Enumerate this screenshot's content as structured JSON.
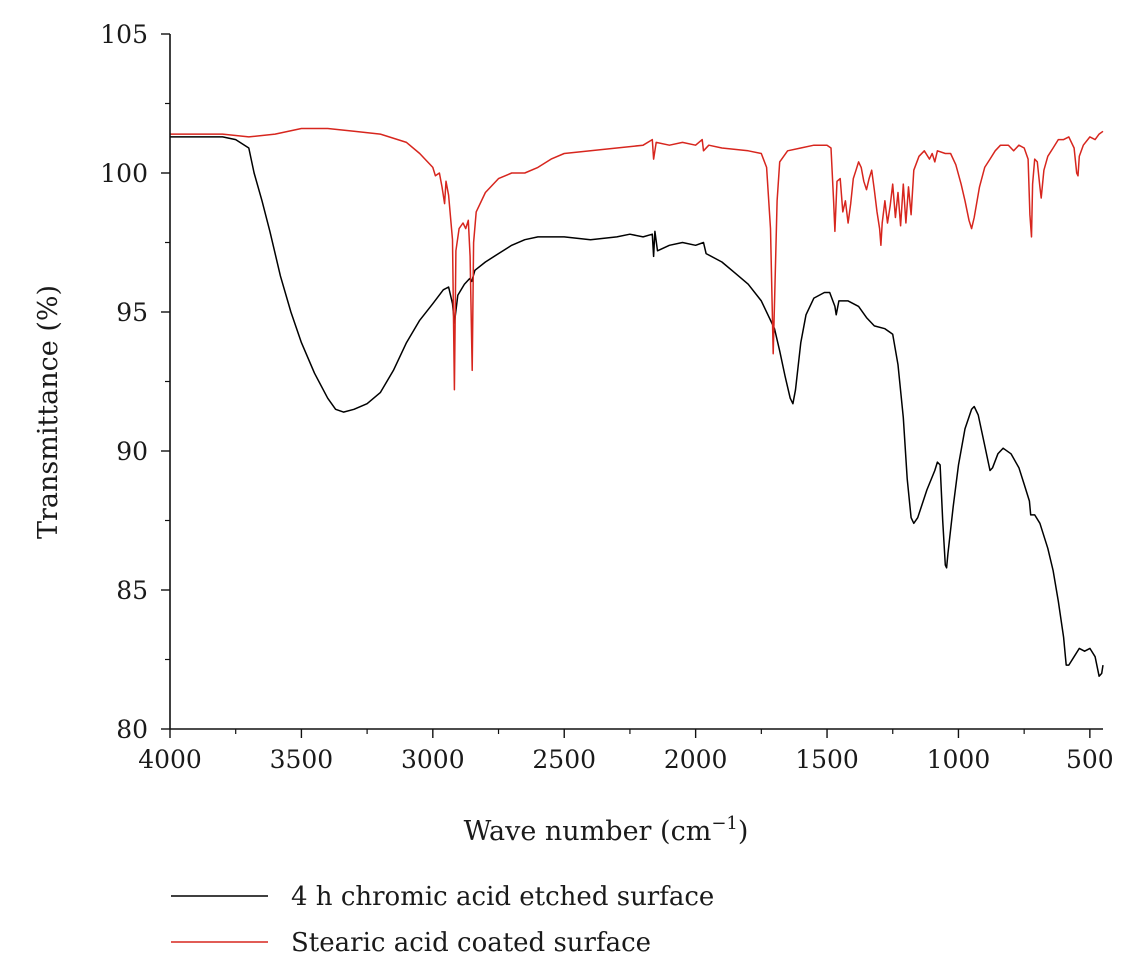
{
  "chart_data": {
    "type": "line",
    "xlabel": "Wave number (cm",
    "xlabel_sup": "−1",
    "xlabel_close": ")",
    "ylabel": "Transmittance (%)",
    "xlim": [
      4000,
      450
    ],
    "x_reversed": true,
    "ylim": [
      80,
      105
    ],
    "x_ticks": [
      4000,
      3500,
      3000,
      2500,
      2000,
      1500,
      1000,
      500
    ],
    "y_ticks": [
      80,
      85,
      90,
      95,
      100,
      105
    ],
    "legend_position": "bottom-left",
    "series": [
      {
        "name": "4 h chromic acid etched surface",
        "color": "#000000",
        "points": [
          [
            4000,
            101.3
          ],
          [
            3900,
            101.3
          ],
          [
            3800,
            101.3
          ],
          [
            3750,
            101.2
          ],
          [
            3700,
            100.9
          ],
          [
            3680,
            100.0
          ],
          [
            3650,
            99.0
          ],
          [
            3620,
            97.9
          ],
          [
            3580,
            96.3
          ],
          [
            3540,
            95.0
          ],
          [
            3500,
            93.9
          ],
          [
            3450,
            92.8
          ],
          [
            3400,
            91.9
          ],
          [
            3370,
            91.5
          ],
          [
            3340,
            91.4
          ],
          [
            3300,
            91.5
          ],
          [
            3250,
            91.7
          ],
          [
            3200,
            92.1
          ],
          [
            3150,
            92.9
          ],
          [
            3100,
            93.9
          ],
          [
            3050,
            94.7
          ],
          [
            3000,
            95.3
          ],
          [
            2960,
            95.8
          ],
          [
            2940,
            95.9
          ],
          [
            2925,
            95.3
          ],
          [
            2918,
            94.6
          ],
          [
            2905,
            95.6
          ],
          [
            2880,
            96.0
          ],
          [
            2860,
            96.2
          ],
          [
            2852,
            96.1
          ],
          [
            2840,
            96.5
          ],
          [
            2800,
            96.8
          ],
          [
            2750,
            97.1
          ],
          [
            2700,
            97.4
          ],
          [
            2650,
            97.6
          ],
          [
            2600,
            97.7
          ],
          [
            2500,
            97.7
          ],
          [
            2400,
            97.6
          ],
          [
            2300,
            97.7
          ],
          [
            2250,
            97.8
          ],
          [
            2200,
            97.7
          ],
          [
            2165,
            97.8
          ],
          [
            2160,
            97.0
          ],
          [
            2155,
            97.9
          ],
          [
            2145,
            97.2
          ],
          [
            2100,
            97.4
          ],
          [
            2050,
            97.5
          ],
          [
            2000,
            97.4
          ],
          [
            1970,
            97.5
          ],
          [
            1960,
            97.1
          ],
          [
            1900,
            96.8
          ],
          [
            1850,
            96.4
          ],
          [
            1800,
            96.0
          ],
          [
            1750,
            95.4
          ],
          [
            1700,
            94.4
          ],
          [
            1680,
            93.6
          ],
          [
            1660,
            92.7
          ],
          [
            1640,
            91.9
          ],
          [
            1630,
            91.7
          ],
          [
            1620,
            92.2
          ],
          [
            1600,
            93.9
          ],
          [
            1580,
            94.9
          ],
          [
            1550,
            95.5
          ],
          [
            1510,
            95.7
          ],
          [
            1490,
            95.7
          ],
          [
            1470,
            95.2
          ],
          [
            1465,
            94.9
          ],
          [
            1455,
            95.4
          ],
          [
            1420,
            95.4
          ],
          [
            1380,
            95.2
          ],
          [
            1350,
            94.8
          ],
          [
            1320,
            94.5
          ],
          [
            1280,
            94.4
          ],
          [
            1250,
            94.2
          ],
          [
            1230,
            93.1
          ],
          [
            1210,
            91.2
          ],
          [
            1195,
            89.0
          ],
          [
            1180,
            87.6
          ],
          [
            1170,
            87.4
          ],
          [
            1155,
            87.6
          ],
          [
            1120,
            88.6
          ],
          [
            1090,
            89.3
          ],
          [
            1080,
            89.6
          ],
          [
            1070,
            89.5
          ],
          [
            1060,
            87.5
          ],
          [
            1050,
            85.9
          ],
          [
            1045,
            85.8
          ],
          [
            1040,
            86.3
          ],
          [
            1020,
            88.0
          ],
          [
            1000,
            89.5
          ],
          [
            975,
            90.8
          ],
          [
            950,
            91.5
          ],
          [
            940,
            91.6
          ],
          [
            925,
            91.3
          ],
          [
            900,
            90.2
          ],
          [
            880,
            89.3
          ],
          [
            870,
            89.4
          ],
          [
            850,
            89.9
          ],
          [
            830,
            90.1
          ],
          [
            800,
            89.9
          ],
          [
            770,
            89.4
          ],
          [
            750,
            88.8
          ],
          [
            730,
            88.2
          ],
          [
            725,
            87.7
          ],
          [
            710,
            87.7
          ],
          [
            690,
            87.4
          ],
          [
            660,
            86.5
          ],
          [
            640,
            85.7
          ],
          [
            620,
            84.6
          ],
          [
            600,
            83.3
          ],
          [
            590,
            82.3
          ],
          [
            580,
            82.3
          ],
          [
            560,
            82.6
          ],
          [
            540,
            82.9
          ],
          [
            520,
            82.8
          ],
          [
            500,
            82.9
          ],
          [
            480,
            82.6
          ],
          [
            465,
            81.9
          ],
          [
            455,
            82.0
          ],
          [
            450,
            82.3
          ]
        ]
      },
      {
        "name": "Stearic acid coated surface",
        "color": "#d7261e",
        "points": [
          [
            4000,
            101.4
          ],
          [
            3900,
            101.4
          ],
          [
            3800,
            101.4
          ],
          [
            3700,
            101.3
          ],
          [
            3600,
            101.4
          ],
          [
            3500,
            101.6
          ],
          [
            3400,
            101.6
          ],
          [
            3300,
            101.5
          ],
          [
            3200,
            101.4
          ],
          [
            3100,
            101.1
          ],
          [
            3050,
            100.7
          ],
          [
            3000,
            100.2
          ],
          [
            2990,
            99.9
          ],
          [
            2975,
            100.0
          ],
          [
            2965,
            99.5
          ],
          [
            2955,
            98.9
          ],
          [
            2950,
            99.7
          ],
          [
            2940,
            99.2
          ],
          [
            2925,
            97.6
          ],
          [
            2918,
            92.2
          ],
          [
            2912,
            97.2
          ],
          [
            2900,
            98.0
          ],
          [
            2885,
            98.2
          ],
          [
            2875,
            98.0
          ],
          [
            2865,
            98.3
          ],
          [
            2858,
            97.0
          ],
          [
            2850,
            92.9
          ],
          [
            2845,
            97.5
          ],
          [
            2835,
            98.6
          ],
          [
            2800,
            99.3
          ],
          [
            2750,
            99.8
          ],
          [
            2700,
            100.0
          ],
          [
            2650,
            100.0
          ],
          [
            2600,
            100.2
          ],
          [
            2550,
            100.5
          ],
          [
            2500,
            100.7
          ],
          [
            2400,
            100.8
          ],
          [
            2300,
            100.9
          ],
          [
            2200,
            101.0
          ],
          [
            2165,
            101.2
          ],
          [
            2160,
            100.5
          ],
          [
            2150,
            101.1
          ],
          [
            2100,
            101.0
          ],
          [
            2050,
            101.1
          ],
          [
            2000,
            101.0
          ],
          [
            1975,
            101.2
          ],
          [
            1970,
            100.8
          ],
          [
            1950,
            101.0
          ],
          [
            1900,
            100.9
          ],
          [
            1800,
            100.8
          ],
          [
            1750,
            100.7
          ],
          [
            1730,
            100.2
          ],
          [
            1715,
            98.0
          ],
          [
            1705,
            93.5
          ],
          [
            1698,
            96.0
          ],
          [
            1690,
            99.0
          ],
          [
            1680,
            100.4
          ],
          [
            1650,
            100.8
          ],
          [
            1600,
            100.9
          ],
          [
            1550,
            101.0
          ],
          [
            1500,
            101.0
          ],
          [
            1485,
            100.9
          ],
          [
            1475,
            99.0
          ],
          [
            1470,
            97.9
          ],
          [
            1462,
            99.7
          ],
          [
            1450,
            99.8
          ],
          [
            1440,
            98.6
          ],
          [
            1430,
            99.0
          ],
          [
            1420,
            98.2
          ],
          [
            1410,
            98.9
          ],
          [
            1400,
            99.8
          ],
          [
            1390,
            100.1
          ],
          [
            1380,
            100.4
          ],
          [
            1370,
            100.2
          ],
          [
            1360,
            99.7
          ],
          [
            1350,
            99.4
          ],
          [
            1340,
            99.8
          ],
          [
            1330,
            100.1
          ],
          [
            1320,
            99.4
          ],
          [
            1310,
            98.6
          ],
          [
            1300,
            98.0
          ],
          [
            1295,
            97.4
          ],
          [
            1290,
            98.2
          ],
          [
            1280,
            99.0
          ],
          [
            1270,
            98.2
          ],
          [
            1260,
            98.8
          ],
          [
            1250,
            99.6
          ],
          [
            1240,
            98.4
          ],
          [
            1230,
            99.3
          ],
          [
            1220,
            98.1
          ],
          [
            1210,
            99.6
          ],
          [
            1200,
            98.2
          ],
          [
            1190,
            99.5
          ],
          [
            1180,
            98.5
          ],
          [
            1170,
            100.1
          ],
          [
            1150,
            100.6
          ],
          [
            1130,
            100.8
          ],
          [
            1110,
            100.5
          ],
          [
            1100,
            100.7
          ],
          [
            1090,
            100.4
          ],
          [
            1080,
            100.8
          ],
          [
            1050,
            100.7
          ],
          [
            1030,
            100.7
          ],
          [
            1010,
            100.3
          ],
          [
            990,
            99.6
          ],
          [
            975,
            99.0
          ],
          [
            960,
            98.3
          ],
          [
            950,
            98.0
          ],
          [
            940,
            98.4
          ],
          [
            920,
            99.5
          ],
          [
            900,
            100.2
          ],
          [
            880,
            100.5
          ],
          [
            860,
            100.8
          ],
          [
            840,
            101.0
          ],
          [
            810,
            101.0
          ],
          [
            790,
            100.8
          ],
          [
            770,
            101.0
          ],
          [
            750,
            100.9
          ],
          [
            735,
            100.5
          ],
          [
            728,
            98.5
          ],
          [
            722,
            97.7
          ],
          [
            718,
            99.6
          ],
          [
            710,
            100.5
          ],
          [
            700,
            100.4
          ],
          [
            690,
            99.5
          ],
          [
            685,
            99.1
          ],
          [
            675,
            100.1
          ],
          [
            660,
            100.6
          ],
          [
            640,
            100.9
          ],
          [
            620,
            101.2
          ],
          [
            600,
            101.2
          ],
          [
            580,
            101.3
          ],
          [
            560,
            100.9
          ],
          [
            550,
            100.0
          ],
          [
            545,
            99.9
          ],
          [
            540,
            100.6
          ],
          [
            525,
            101.0
          ],
          [
            500,
            101.3
          ],
          [
            480,
            101.2
          ],
          [
            465,
            101.4
          ],
          [
            450,
            101.5
          ]
        ]
      }
    ]
  }
}
